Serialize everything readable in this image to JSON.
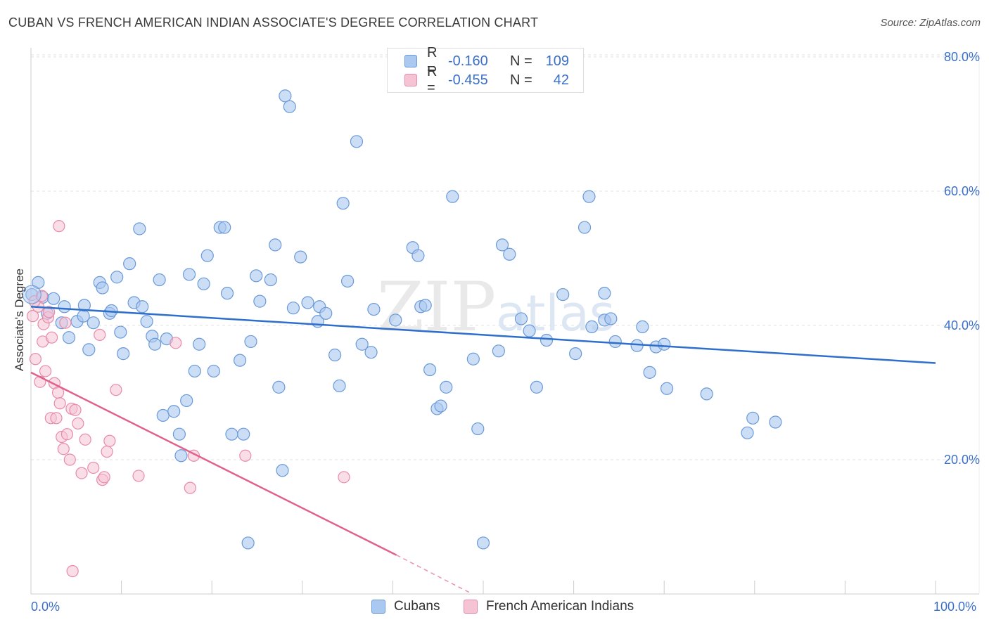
{
  "header": {
    "title": "CUBAN VS FRENCH AMERICAN INDIAN ASSOCIATE'S DEGREE CORRELATION CHART",
    "source": "Source: ZipAtlas.com"
  },
  "colors": {
    "blue_fill": "#aac8f0",
    "blue_stroke": "#6a9ad8",
    "blue_line": "#2f6fcc",
    "pink_fill": "#f6c3d4",
    "pink_stroke": "#e88aa8",
    "pink_line": "#e0628c",
    "grid": "#e2e2e2",
    "axis_text": "#3a6fc9"
  },
  "legend_top": [
    {
      "label": "R =",
      "r": "-0.160",
      "n_label": "N =",
      "n": "109",
      "series": "Cubans"
    },
    {
      "label": "R =",
      "r": "-0.455",
      "n_label": "N =",
      "n": "42",
      "series": "French American Indians"
    }
  ],
  "legend_bottom": [
    "Cubans",
    "French American Indians"
  ],
  "chart_data": {
    "type": "scatter",
    "title": "CUBAN VS FRENCH AMERICAN INDIAN ASSOCIATE'S DEGREE CORRELATION CHART",
    "xlabel": "",
    "ylabel": "Associate's Degree",
    "xlim": [
      0,
      100
    ],
    "ylim": [
      0,
      82
    ],
    "x_tick_labels": [
      "0.0%",
      "100.0%"
    ],
    "y_ticks": [
      20,
      40,
      60,
      80
    ],
    "y_tick_labels": [
      "20.0%",
      "40.0%",
      "60.0%",
      "80.0%"
    ],
    "watermark": "ZIPatlas",
    "series": [
      {
        "name": "Cubans",
        "r": -0.16,
        "n": 109,
        "trend": {
          "x": [
            0,
            100
          ],
          "y": [
            42.8,
            34.4
          ]
        },
        "points": [
          [
            0.1,
            44.6
          ],
          [
            0.8,
            46.4
          ],
          [
            1.3,
            44.2
          ],
          [
            2.5,
            44.0
          ],
          [
            1.8,
            41.8
          ],
          [
            3.4,
            40.4
          ],
          [
            3.7,
            42.8
          ],
          [
            4.2,
            38.2
          ],
          [
            5.1,
            40.6
          ],
          [
            5.8,
            41.4
          ],
          [
            5.9,
            43.0
          ],
          [
            6.4,
            36.4
          ],
          [
            6.9,
            40.4
          ],
          [
            7.6,
            46.4
          ],
          [
            7.9,
            45.6
          ],
          [
            8.7,
            41.8
          ],
          [
            8.9,
            42.2
          ],
          [
            9.5,
            47.2
          ],
          [
            9.9,
            39.0
          ],
          [
            10.2,
            35.8
          ],
          [
            10.9,
            49.2
          ],
          [
            11.4,
            43.4
          ],
          [
            12.0,
            54.4
          ],
          [
            12.3,
            42.8
          ],
          [
            12.8,
            40.6
          ],
          [
            13.4,
            38.4
          ],
          [
            13.7,
            37.2
          ],
          [
            14.2,
            46.8
          ],
          [
            14.6,
            26.6
          ],
          [
            15.0,
            38.0
          ],
          [
            15.8,
            27.2
          ],
          [
            16.4,
            23.8
          ],
          [
            16.6,
            20.6
          ],
          [
            17.2,
            28.8
          ],
          [
            17.5,
            47.6
          ],
          [
            18.1,
            33.2
          ],
          [
            18.6,
            37.2
          ],
          [
            19.1,
            46.2
          ],
          [
            19.5,
            50.4
          ],
          [
            20.2,
            33.2
          ],
          [
            20.9,
            54.6
          ],
          [
            21.4,
            54.6
          ],
          [
            21.7,
            44.8
          ],
          [
            22.2,
            23.8
          ],
          [
            23.1,
            34.8
          ],
          [
            23.5,
            23.8
          ],
          [
            24.0,
            7.6
          ],
          [
            24.3,
            37.6
          ],
          [
            24.9,
            47.4
          ],
          [
            25.3,
            43.6
          ],
          [
            26.5,
            46.8
          ],
          [
            27.0,
            52.0
          ],
          [
            27.4,
            30.8
          ],
          [
            27.8,
            18.4
          ],
          [
            28.1,
            74.2
          ],
          [
            28.6,
            72.6
          ],
          [
            29.0,
            42.6
          ],
          [
            29.8,
            50.2
          ],
          [
            30.6,
            43.4
          ],
          [
            31.7,
            40.6
          ],
          [
            31.9,
            42.8
          ],
          [
            32.6,
            41.8
          ],
          [
            33.6,
            35.6
          ],
          [
            34.1,
            31.0
          ],
          [
            34.5,
            58.2
          ],
          [
            35.0,
            46.6
          ],
          [
            36.0,
            67.4
          ],
          [
            36.6,
            37.2
          ],
          [
            37.6,
            36.0
          ],
          [
            37.9,
            42.4
          ],
          [
            40.3,
            40.8
          ],
          [
            42.2,
            51.6
          ],
          [
            42.8,
            50.4
          ],
          [
            43.1,
            42.8
          ],
          [
            43.6,
            43.0
          ],
          [
            44.1,
            33.4
          ],
          [
            44.9,
            27.6
          ],
          [
            45.3,
            28.0
          ],
          [
            45.9,
            30.8
          ],
          [
            46.6,
            59.2
          ],
          [
            48.9,
            35.0
          ],
          [
            49.4,
            24.6
          ],
          [
            51.7,
            36.2
          ],
          [
            52.1,
            52.0
          ],
          [
            52.9,
            50.6
          ],
          [
            54.2,
            41.0
          ],
          [
            55.1,
            39.2
          ],
          [
            55.9,
            30.8
          ],
          [
            57.0,
            37.8
          ],
          [
            58.8,
            44.6
          ],
          [
            60.2,
            35.8
          ],
          [
            61.2,
            54.6
          ],
          [
            61.7,
            59.2
          ],
          [
            62.0,
            39.8
          ],
          [
            63.4,
            40.8
          ],
          [
            64.1,
            41.0
          ],
          [
            64.6,
            37.6
          ],
          [
            67.0,
            37.0
          ],
          [
            67.6,
            39.8
          ],
          [
            68.4,
            33.0
          ],
          [
            69.1,
            36.8
          ],
          [
            70.0,
            37.2
          ],
          [
            70.3,
            30.6
          ],
          [
            74.7,
            29.8
          ],
          [
            79.2,
            24.0
          ],
          [
            79.8,
            26.2
          ],
          [
            82.3,
            25.6
          ],
          [
            50.0,
            7.6
          ],
          [
            63.4,
            44.8
          ]
        ]
      },
      {
        "name": "French American Indians",
        "r": -0.455,
        "n": 42,
        "trend": {
          "x": [
            0,
            40.4
          ],
          "y": [
            33.0,
            5.8
          ]
        },
        "trend_dashed": {
          "x": [
            40.4,
            48.5
          ],
          "y": [
            5.8,
            0.2
          ]
        },
        "points": [
          [
            0.2,
            41.4
          ],
          [
            0.5,
            35.0
          ],
          [
            0.8,
            42.8
          ],
          [
            1.0,
            31.6
          ],
          [
            1.3,
            37.6
          ],
          [
            1.4,
            40.2
          ],
          [
            1.9,
            41.2
          ],
          [
            1.6,
            33.2
          ],
          [
            2.2,
            26.2
          ],
          [
            2.3,
            38.2
          ],
          [
            2.6,
            31.4
          ],
          [
            2.8,
            26.2
          ],
          [
            3.0,
            30.0
          ],
          [
            3.2,
            28.4
          ],
          [
            3.1,
            54.8
          ],
          [
            3.4,
            23.4
          ],
          [
            3.6,
            21.6
          ],
          [
            3.8,
            40.4
          ],
          [
            4.0,
            23.8
          ],
          [
            4.3,
            20.0
          ],
          [
            4.5,
            27.6
          ],
          [
            4.6,
            3.4
          ],
          [
            4.9,
            27.4
          ],
          [
            5.2,
            25.4
          ],
          [
            5.6,
            18.0
          ],
          [
            6.0,
            23.0
          ],
          [
            6.9,
            18.8
          ],
          [
            7.6,
            38.6
          ],
          [
            7.9,
            17.0
          ],
          [
            8.1,
            17.4
          ],
          [
            8.4,
            21.2
          ],
          [
            8.7,
            22.8
          ],
          [
            9.4,
            30.4
          ],
          [
            11.9,
            17.6
          ],
          [
            16.0,
            37.4
          ],
          [
            17.6,
            15.8
          ],
          [
            18.0,
            20.6
          ],
          [
            23.7,
            20.6
          ],
          [
            34.6,
            17.4
          ],
          [
            0.4,
            43.6
          ],
          [
            1.2,
            44.4
          ],
          [
            2.0,
            42.0
          ]
        ]
      }
    ]
  }
}
